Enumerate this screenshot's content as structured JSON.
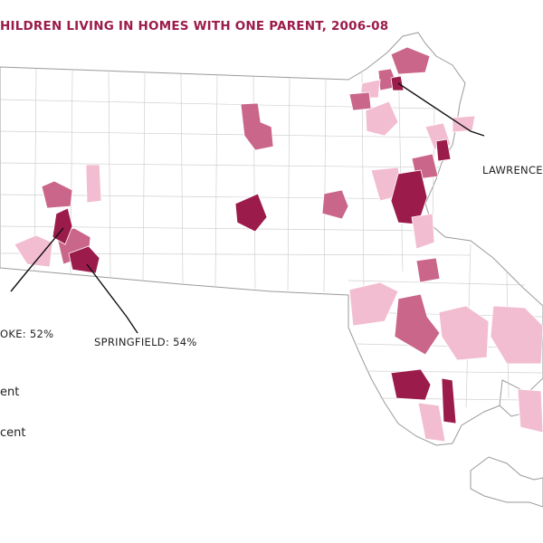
{
  "header": {
    "title": "HILDREN LIVING IN HOMES WITH ONE PARENT, 2006-08"
  },
  "labels": [
    {
      "text": "LAWRENCE:"
    },
    {
      "text": "OKE: 52%"
    },
    {
      "text": "SPRINGFIELD: 54%"
    }
  ],
  "legend": [
    {
      "text": "ent"
    },
    {
      "text": "cent"
    }
  ]
}
